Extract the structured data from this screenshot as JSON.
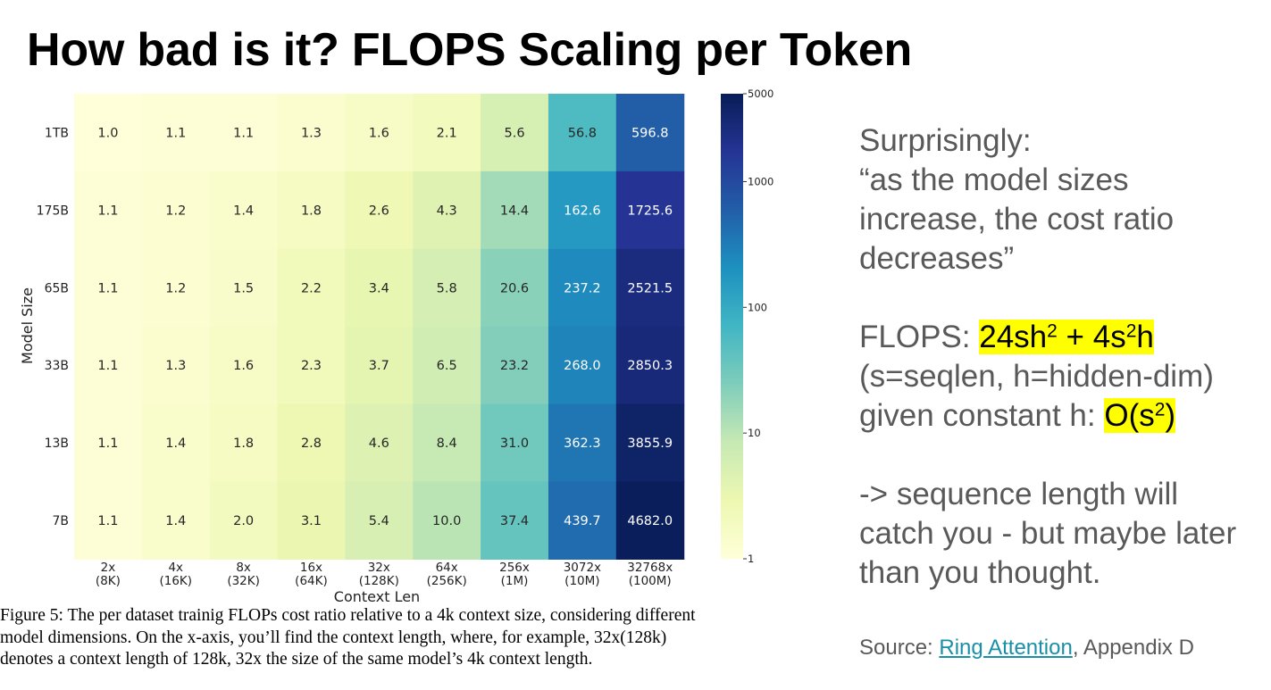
{
  "slide": {
    "title": "How bad is it? FLOPS Scaling per Token"
  },
  "caption": {
    "lines": [
      "Figure 5: The per dataset trainig FLOPs cost ratio relative to a 4k context size, considering different",
      "model dimensions. On the x-axis, you’ll find the context length, where, for example, 32x(128k)",
      "denotes a context length of 128k, 32x the size of the same model’s 4k context length."
    ]
  },
  "notes": {
    "quote_lines": [
      "Surprisingly:",
      "“as the model sizes",
      "increase, the cost ratio",
      "decreases”"
    ],
    "flops_label": "FLOPS: ",
    "flops_formula": "24sh² + 4s²h",
    "flops_vars": "(s=seqlen, h=hidden-dim)",
    "constant_prefix": "given constant h: ",
    "complexity": "O(s²)",
    "conclusion_lines": [
      "-> sequence length will",
      "catch you - but maybe later",
      "than you thought."
    ]
  },
  "source": {
    "prefix": "Source: ",
    "link_text": "Ring Attention",
    "suffix": ", Appendix D"
  },
  "chart_data": {
    "type": "heatmap",
    "xlabel": "Context Len",
    "ylabel": "Model Size",
    "x_categories": [
      "2x\n(8K)",
      "4x\n(16K)",
      "8x\n(32K)",
      "16x\n(64K)",
      "32x\n(128K)",
      "64x\n(256K)",
      "256x\n(1M)",
      "3072x\n(10M)",
      "32768x\n(100M)"
    ],
    "y_categories": [
      "1TB",
      "175B",
      "65B",
      "33B",
      "13B",
      "7B"
    ],
    "values": [
      [
        1.0,
        1.1,
        1.1,
        1.3,
        1.6,
        2.1,
        5.6,
        56.8,
        596.8
      ],
      [
        1.1,
        1.2,
        1.4,
        1.8,
        2.6,
        4.3,
        14.4,
        162.6,
        1725.6
      ],
      [
        1.1,
        1.2,
        1.5,
        2.2,
        3.4,
        5.8,
        20.6,
        237.2,
        2521.5
      ],
      [
        1.1,
        1.3,
        1.6,
        2.3,
        3.7,
        6.5,
        23.2,
        268.0,
        2850.3
      ],
      [
        1.1,
        1.4,
        1.8,
        2.8,
        4.6,
        8.4,
        31.0,
        362.3,
        3855.9
      ],
      [
        1.1,
        1.4,
        2.0,
        3.1,
        5.4,
        10.0,
        37.4,
        439.7,
        4682.0
      ]
    ],
    "colorbar": {
      "scale": "log",
      "range": [
        1,
        5000
      ],
      "ticks": [
        1,
        10,
        100,
        1000,
        5000
      ],
      "colormap": "YlGnBu"
    },
    "grid": false,
    "legend": "colorbar-right"
  }
}
